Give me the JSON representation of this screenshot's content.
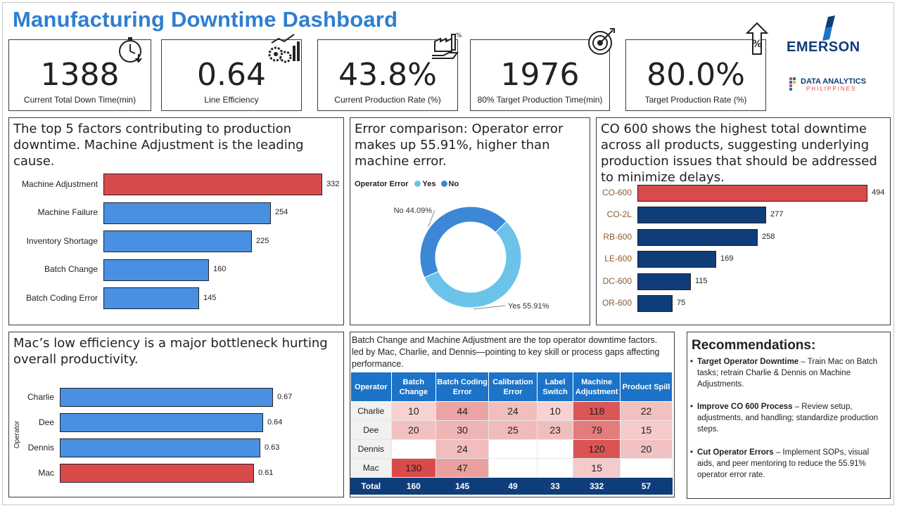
{
  "title": "Manufacturing Downtime Dashboard",
  "kpis": [
    {
      "value": "1388",
      "label": "Current Total Down Time(min)",
      "icon": "stopwatch-icon"
    },
    {
      "value": "0.64",
      "label": "Line Efficiency",
      "icon": "gears-chart-icon"
    },
    {
      "value": "43.8%",
      "label": "Current Production Rate (%)",
      "icon": "factory-hand-icon"
    },
    {
      "value": "1976",
      "label": "80% Target Production Time(min)",
      "icon": "target-icon"
    },
    {
      "value": "80.0%",
      "label": "Target Production Rate (%)",
      "icon": "percent-arrow-icon"
    }
  ],
  "logos": {
    "emerson": "EMERSON",
    "dap_line1": "DATA ANALYTICS",
    "dap_line2": "PHILIPPINES"
  },
  "colors": {
    "accent": "#2f7ed0",
    "highlight_red": "#d94b4b",
    "bar_blue": "#4a90e2",
    "dark_navy": "#0f3d7a",
    "donut_no": "#3c87d6",
    "donut_yes": "#6cc3ea"
  },
  "panels": {
    "factors": {
      "title": "The top 5 factors contributing to production downtime. Machine Adjustment is the leading cause."
    },
    "error": {
      "title": "Error comparison: Operator error makes up 55.91%, higher than machine error."
    },
    "products": {
      "title": "CO 600 shows the highest total downtime across all products, suggesting underlying production issues that should be addressed to minimize delays."
    },
    "operators": {
      "title": "Mac’s low efficiency is a major bottleneck hurting overall productivity."
    },
    "matrix": {
      "title": "Batch Change and Machine Adjustment are the top operator downtime factors. led by Mac, Charlie, and Dennis—pointing to key skill or process gaps affecting performance."
    }
  },
  "chart_data": [
    {
      "type": "bar",
      "orientation": "horizontal",
      "categories": [
        "Machine Adjustment",
        "Machine Failure",
        "Inventory Shortage",
        "Batch Change",
        "Batch Coding Error"
      ],
      "values": [
        332,
        254,
        225,
        160,
        145
      ],
      "labels": [
        "332",
        "254",
        "225",
        "160",
        "145"
      ],
      "xlim": [
        0,
        332
      ],
      "highlight": "Machine Adjustment"
    },
    {
      "type": "pie",
      "style": "donut",
      "legend_title": "Operator Error",
      "legend_position": "top-left",
      "categories": [
        "Yes",
        "No"
      ],
      "values": [
        55.91,
        44.09
      ],
      "labels": [
        "Yes 55.91%",
        "No 44.09%"
      ]
    },
    {
      "type": "bar",
      "orientation": "horizontal",
      "categories": [
        "CO-600",
        "CO-2L",
        "RB-600",
        "LE-600",
        "DC-600",
        "OR-600"
      ],
      "values": [
        494,
        277,
        258,
        169,
        115,
        75
      ],
      "labels": [
        "494",
        "277",
        "258",
        "169",
        "115",
        "75"
      ],
      "xlim": [
        0,
        494
      ],
      "highlight": "CO-600"
    },
    {
      "type": "bar",
      "orientation": "horizontal",
      "ylabel": "Operator",
      "categories": [
        "Charlie",
        "Dee",
        "Dennis",
        "Mac"
      ],
      "values": [
        0.67,
        0.64,
        0.63,
        0.61
      ],
      "labels": [
        "0.67",
        "0.64",
        "0.63",
        "0.61"
      ],
      "xlim": [
        0,
        0.67
      ],
      "highlight": "Mac"
    },
    {
      "type": "table",
      "columns": [
        "Operator",
        "Batch Change",
        "Batch Coding Error",
        "Calibration Error",
        "Label Switch",
        "Machine Adjustment",
        "Product Spill"
      ],
      "rows": [
        {
          "operator": "Charlie",
          "cells": [
            "10",
            "44",
            "24",
            "10",
            "118",
            "22"
          ]
        },
        {
          "operator": "Dee",
          "cells": [
            "20",
            "30",
            "25",
            "23",
            "79",
            "15"
          ]
        },
        {
          "operator": "Dennis",
          "cells": [
            "",
            "24",
            "",
            "",
            "120",
            "20"
          ]
        },
        {
          "operator": "Mac",
          "cells": [
            "130",
            "47",
            "",
            "",
            "15",
            ""
          ]
        }
      ],
      "total": {
        "label": "Total",
        "cells": [
          "160",
          "145",
          "49",
          "33",
          "332",
          "57"
        ]
      }
    }
  ],
  "recommendations": {
    "title": "Recommendations:",
    "items": [
      {
        "heading": "Target Operator Downtime",
        "text": " – Train Mac on Batch tasks; retrain Charlie & Dennis on Machine Adjustments."
      },
      {
        "heading": "Improve CO 600 Process",
        "text": " – Review setup, adjustments, and handling; standardize production steps."
      },
      {
        "heading": "Cut Operator Errors",
        "text": " – Implement SOPs, visual aids, and peer mentoring to reduce the 55.91% operator error rate."
      }
    ]
  }
}
